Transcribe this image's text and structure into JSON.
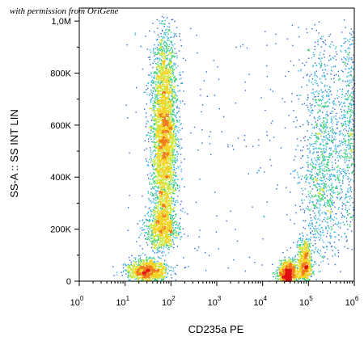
{
  "watermark": "with permission from OriGene",
  "chart_data": {
    "type": "scatter",
    "title": "",
    "xlabel": "CD235a PE",
    "ylabel": "SS-A :: SS INT LIN",
    "x_scale": "log",
    "y_scale": "linear",
    "xlim": [
      1,
      1000000
    ],
    "ylim": [
      0,
      1050000
    ],
    "x_ticks": [
      {
        "value": 1,
        "base": "10",
        "exp": "0"
      },
      {
        "value": 10,
        "base": "10",
        "exp": "1"
      },
      {
        "value": 100,
        "base": "10",
        "exp": "2"
      },
      {
        "value": 1000,
        "base": "10",
        "exp": "3"
      },
      {
        "value": 10000,
        "base": "10",
        "exp": "4"
      },
      {
        "value": 100000,
        "base": "10",
        "exp": "5"
      },
      {
        "value": 1000000,
        "base": "10",
        "exp": "6"
      }
    ],
    "y_ticks": [
      {
        "value": 0,
        "label": "0"
      },
      {
        "value": 200000,
        "label": "200K"
      },
      {
        "value": 400000,
        "label": "400K"
      },
      {
        "value": 600000,
        "label": "600K"
      },
      {
        "value": 800000,
        "label": "800K"
      },
      {
        "value": 1000000,
        "label": "1,0M"
      }
    ],
    "grid": false,
    "density_colormap": [
      "#1a2a9c",
      "#2f66d6",
      "#32b7e0",
      "#3fd07a",
      "#c8e636",
      "#f2d21c",
      "#f07a1a",
      "#e01010"
    ],
    "populations": [
      {
        "x_center": 70,
        "x_spread_decades": 0.14,
        "y_min": 80000,
        "y_max": 1030000,
        "y_peak": 560000,
        "weight": 0.42
      },
      {
        "x_center": 30,
        "x_spread_decades": 0.22,
        "y_min": 0,
        "y_max": 90000,
        "y_peak": 35000,
        "weight": 0.12
      },
      {
        "x_center": 60,
        "x_spread_decades": 0.18,
        "y_min": 120000,
        "y_max": 320000,
        "y_peak": 200000,
        "weight": 0.08
      },
      {
        "x_center": 35000,
        "x_spread_decades": 0.1,
        "y_min": 0,
        "y_max": 90000,
        "y_peak": 15000,
        "weight": 0.1
      },
      {
        "x_center": 80000,
        "x_spread_decades": 0.08,
        "y_min": 0,
        "y_max": 180000,
        "y_peak": 40000,
        "weight": 0.08
      },
      {
        "x_center": 200000,
        "x_spread_decades": 0.25,
        "y_min": 50000,
        "y_max": 1000000,
        "y_peak": 400000,
        "weight": 0.14
      },
      {
        "x_center": 800000,
        "x_spread_decades": 0.12,
        "y_min": 100000,
        "y_max": 1040000,
        "y_peak": 600000,
        "weight": 0.06
      }
    ]
  }
}
